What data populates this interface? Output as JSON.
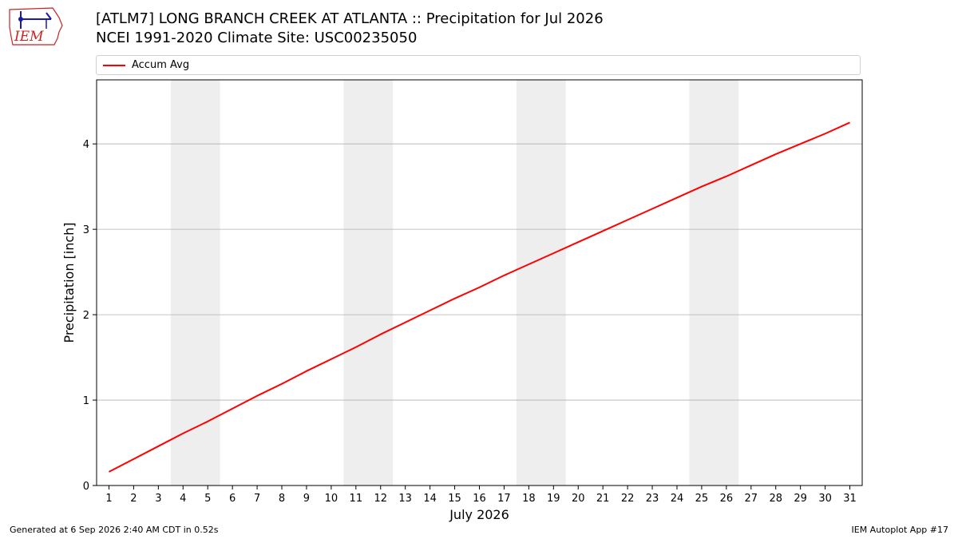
{
  "header": {
    "title": "[ATLM7] LONG BRANCH CREEK  AT ATLANTA :: Precipitation for Jul 2026",
    "subtitle": "NCEI 1991-2020 Climate Site: USC00235050",
    "logo_text": "IEM"
  },
  "footer": {
    "generated": "Generated at 6 Sep 2026 2:40 AM CDT in 0.52s",
    "app": "IEM Autoplot App #17"
  },
  "colors": {
    "line": "#ff0000",
    "weekend_band": "#eeeeee",
    "grid": "#b0b0b0",
    "logo": "#1a1aa6",
    "logo_text": "#cc2222"
  },
  "chart_data": {
    "type": "line",
    "xlabel": "July 2026",
    "ylabel": "Precipitation [inch]",
    "xlim": [
      0.5,
      31.5
    ],
    "ylim": [
      0,
      4.75
    ],
    "yticks": [
      0,
      1,
      2,
      3,
      4
    ],
    "x": [
      1,
      2,
      3,
      4,
      5,
      6,
      7,
      8,
      9,
      10,
      11,
      12,
      13,
      14,
      15,
      16,
      17,
      18,
      19,
      20,
      21,
      22,
      23,
      24,
      25,
      26,
      27,
      28,
      29,
      30,
      31
    ],
    "xtick_labels": [
      "1",
      "2",
      "3",
      "4",
      "5",
      "6",
      "7",
      "8",
      "9",
      "10",
      "11",
      "12",
      "13",
      "14",
      "15",
      "16",
      "17",
      "18",
      "19",
      "20",
      "21",
      "22",
      "23",
      "24",
      "25",
      "26",
      "27",
      "28",
      "29",
      "30",
      "31"
    ],
    "series": [
      {
        "name": "Accum Avg",
        "values": [
          0.16,
          0.31,
          0.46,
          0.61,
          0.75,
          0.9,
          1.05,
          1.19,
          1.34,
          1.48,
          1.62,
          1.77,
          1.91,
          2.05,
          2.19,
          2.32,
          2.46,
          2.59,
          2.72,
          2.85,
          2.98,
          3.11,
          3.24,
          3.37,
          3.5,
          3.62,
          3.75,
          3.88,
          4.0,
          4.12,
          4.25
        ]
      }
    ],
    "weekend_bands": [
      [
        3.5,
        5.5
      ],
      [
        10.5,
        12.5
      ],
      [
        17.5,
        19.5
      ],
      [
        24.5,
        26.5
      ]
    ],
    "grid": "y-major",
    "legend_position": "top"
  }
}
